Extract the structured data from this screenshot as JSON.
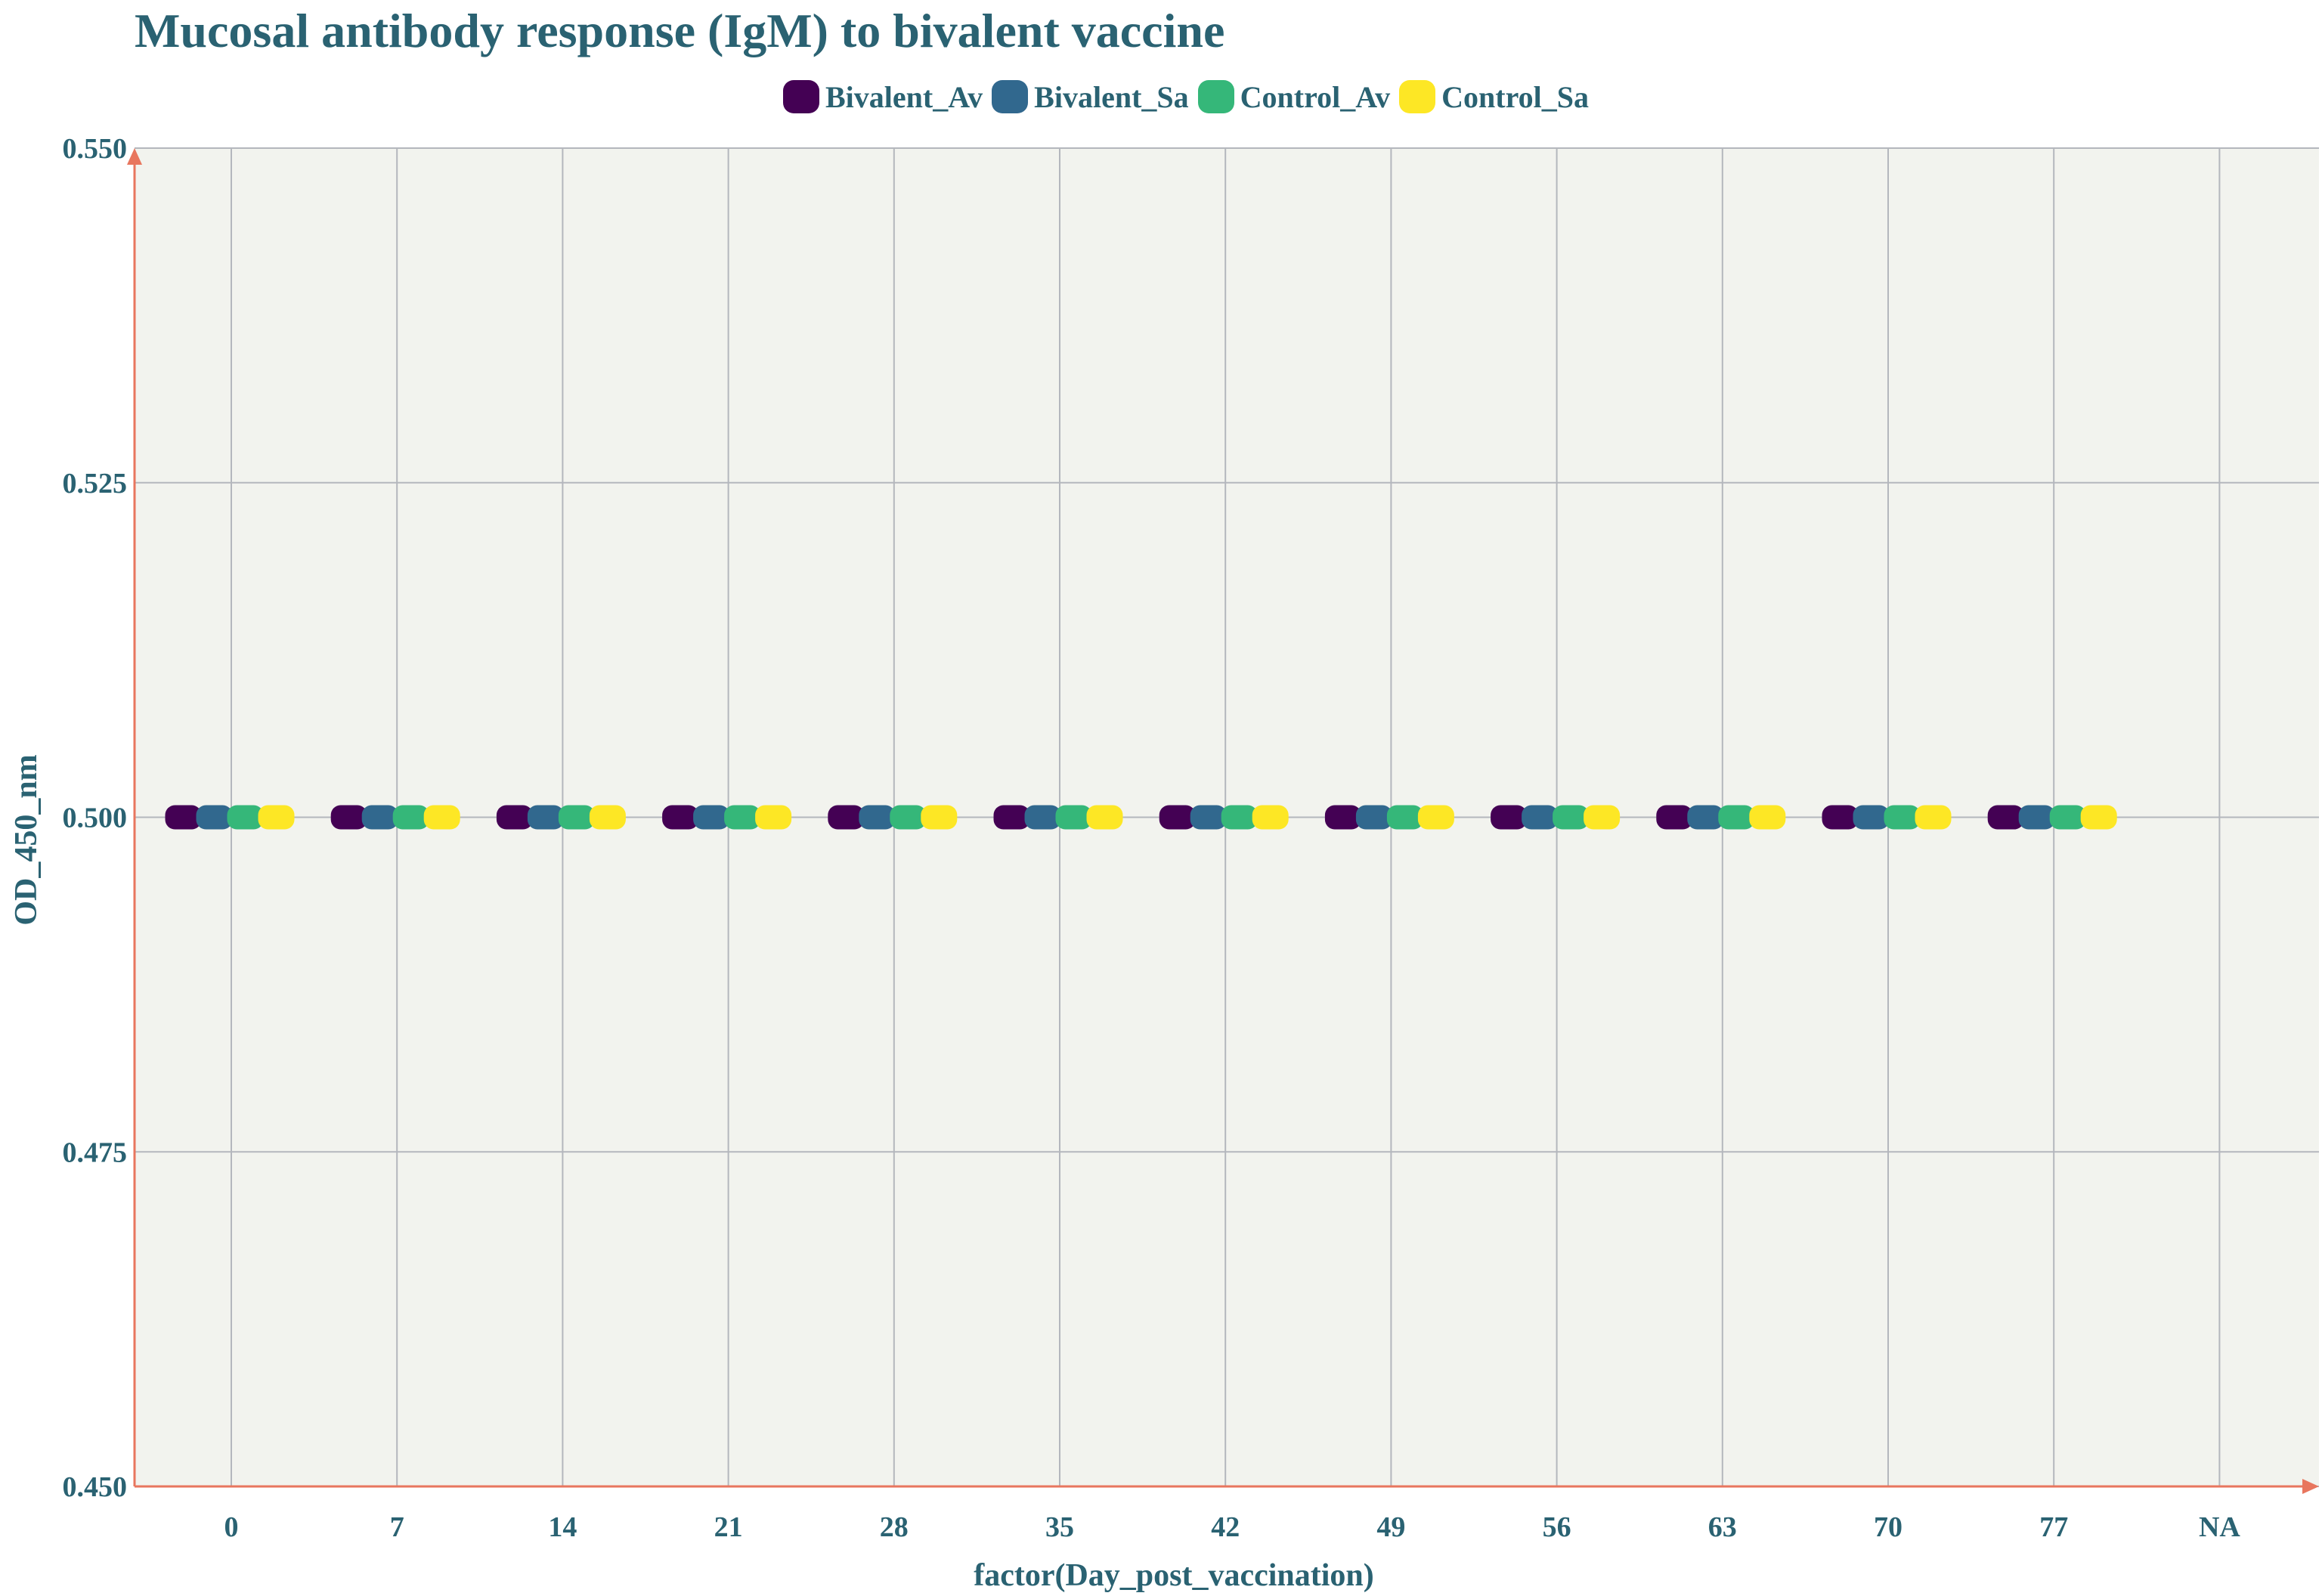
{
  "chart_data": {
    "type": "scatter",
    "title": "Mucosal antibody response (IgM) to bivalent vaccine",
    "xlabel": "factor(Day_post_vaccination)",
    "ylabel": "OD_450_nm",
    "categories": [
      "0",
      "7",
      "14",
      "21",
      "28",
      "35",
      "42",
      "49",
      "56",
      "63",
      "70",
      "77",
      "NA"
    ],
    "ylim": [
      0.45,
      0.55
    ],
    "yticks": [
      "0.450",
      "0.475",
      "0.500",
      "0.525",
      "0.550"
    ],
    "grid": true,
    "legend_position": "top",
    "series": [
      {
        "name": "Bivalent_Av",
        "color": "#440154",
        "values": [
          0.5,
          0.5,
          0.5,
          0.5,
          0.5,
          0.5,
          0.5,
          0.5,
          0.5,
          0.5,
          0.5,
          0.5,
          null
        ]
      },
      {
        "name": "Bivalent_Sa",
        "color": "#31688e",
        "values": [
          0.5,
          0.5,
          0.5,
          0.5,
          0.5,
          0.5,
          0.5,
          0.5,
          0.5,
          0.5,
          0.5,
          0.5,
          null
        ]
      },
      {
        "name": "Control_Av",
        "color": "#35b779",
        "values": [
          0.5,
          0.5,
          0.5,
          0.5,
          0.5,
          0.5,
          0.5,
          0.5,
          0.5,
          0.5,
          0.5,
          0.5,
          null
        ]
      },
      {
        "name": "Control_Sa",
        "color": "#fde725",
        "values": [
          0.5,
          0.5,
          0.5,
          0.5,
          0.5,
          0.5,
          0.5,
          0.5,
          0.5,
          0.5,
          0.5,
          0.5,
          null
        ]
      }
    ],
    "colors": {
      "panel": "#f2f3ee",
      "grid": "#b4b7bd",
      "axis": "#e8765e",
      "text": "#2a6272"
    }
  }
}
